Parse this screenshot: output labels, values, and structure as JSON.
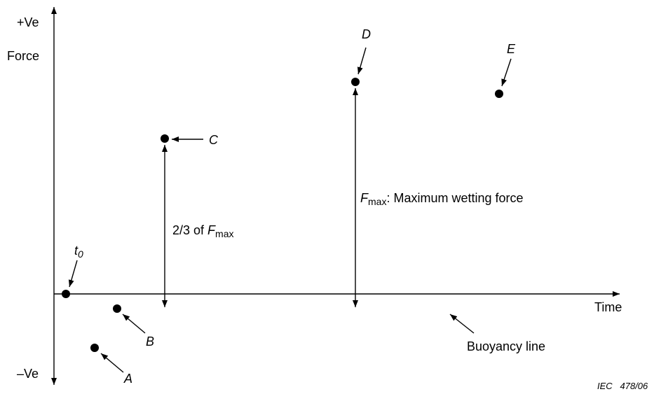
{
  "axes": {
    "positive_label": "+Ve",
    "negative_label": "–Ve",
    "y_label": "Force",
    "x_label": "Time"
  },
  "points": {
    "t0": {
      "label": "t",
      "sub": "0"
    },
    "a": {
      "label": "A"
    },
    "b": {
      "label": "B"
    },
    "c": {
      "label": "C"
    },
    "d": {
      "label": "D"
    },
    "e": {
      "label": "E"
    }
  },
  "annotations": {
    "two_thirds": {
      "prefix": "2/3 of ",
      "f": "F",
      "sub": "max"
    },
    "fmax": {
      "f": "F",
      "sub": "max",
      "suffix": ":  Maximum wetting force"
    },
    "buoyancy": "Buoyancy line"
  },
  "reference": "IEC   478/06"
}
